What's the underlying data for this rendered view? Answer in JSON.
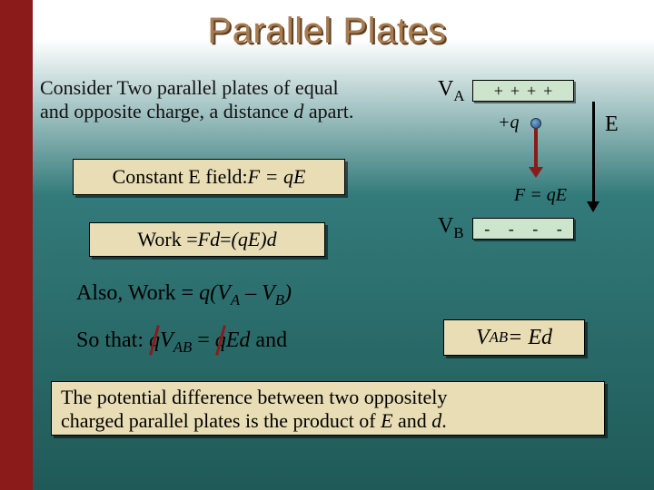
{
  "title": "Parallel Plates",
  "intro_l1": "Consider Two parallel plates of equal",
  "intro_l2a": "and opposite charge, a distance ",
  "intro_l2b": "d",
  "intro_l2c": " apart.",
  "box_e_a": "Constant E field:  ",
  "box_e_b": "F = qE",
  "box_w_a": "Work = ",
  "box_w_b": "Fd",
  "box_w_c": " = ",
  "box_w_d": "(qE)d",
  "also_a": "Also, Work = ",
  "also_b": "q(V",
  "also_sub1": "A",
  "also_c": " – V",
  "also_sub2": "B",
  "also_d": ")",
  "sothat_a": "So that:  ",
  "sothat_q1": "q",
  "sothat_b": "V",
  "sothat_sub": "AB",
  "sothat_c": " = ",
  "sothat_q2": "q",
  "sothat_d": "Ed",
  "sothat_e": "   and",
  "vab_a": "V",
  "vab_sub": "AB",
  "vab_b": " = Ed",
  "concl_l1": "The potential difference between two oppositely",
  "concl_l2a": "charged parallel plates is the product of ",
  "concl_l2b": "E",
  "concl_l2c": " and ",
  "concl_l2d": "d",
  "concl_l2e": ".",
  "diagram": {
    "VA": "V",
    "VA_sub": "A",
    "VB": "V",
    "VB_sub": "B",
    "top_plate": "++++",
    "bot_plate": "- - - -",
    "q_label": "+q",
    "E_label": "E",
    "FqE": "F = qE",
    "colors": {
      "plate_fill": "#cce5cc",
      "arrow_force": "#8b1a1a",
      "arrow_field": "#000000"
    }
  },
  "styling": {
    "slide_width": 720,
    "slide_height": 540,
    "bg_gradient_top": "#ffffff",
    "bg_gradient_bottom": "#1f5a58",
    "stripe_color": "#8b1a1a",
    "title_color": "#a67c52",
    "title_shadow": "#604020",
    "box_fill": "#e8ddb5",
    "title_fontsize": 40,
    "body_fontsize": 22
  }
}
